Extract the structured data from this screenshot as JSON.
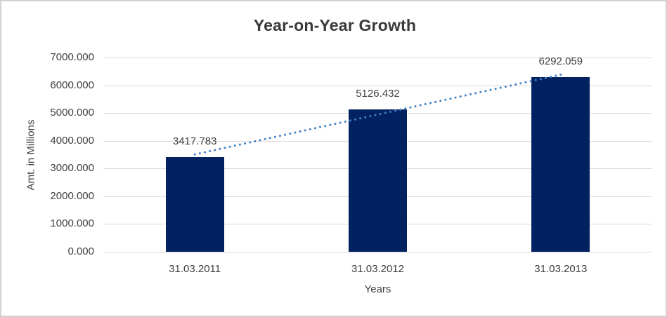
{
  "window": {
    "background": "#ffffff",
    "border_color": "#d2d2d2"
  },
  "chart_data": {
    "type": "bar",
    "title": "Year-on-Year Growth",
    "xlabel": "Years",
    "ylabel": "Amt. in Millions",
    "categories": [
      "31.03.2011",
      "31.03.2012",
      "31.03.2013"
    ],
    "values": [
      3417.783,
      5126.432,
      6292.059
    ],
    "data_labels": [
      "3417.783",
      "5126.432",
      "6292.059"
    ],
    "ylim": [
      0,
      7000
    ],
    "ytick_step": 1000,
    "ytick_labels": [
      "0.000",
      "1000.000",
      "2000.000",
      "3000.000",
      "4000.000",
      "5000.000",
      "6000.000",
      "7000.000"
    ],
    "grid": "horizontal",
    "legend": "none",
    "colors": {
      "bar": "#022161",
      "trendline": "#4080c6",
      "gridline": "#d9d9d9",
      "text": "#404040",
      "title_text": "#393939"
    },
    "trendline": {
      "type": "linear",
      "style": "dotted",
      "endpoint_values": [
        3508.3,
        6382.6
      ]
    }
  }
}
